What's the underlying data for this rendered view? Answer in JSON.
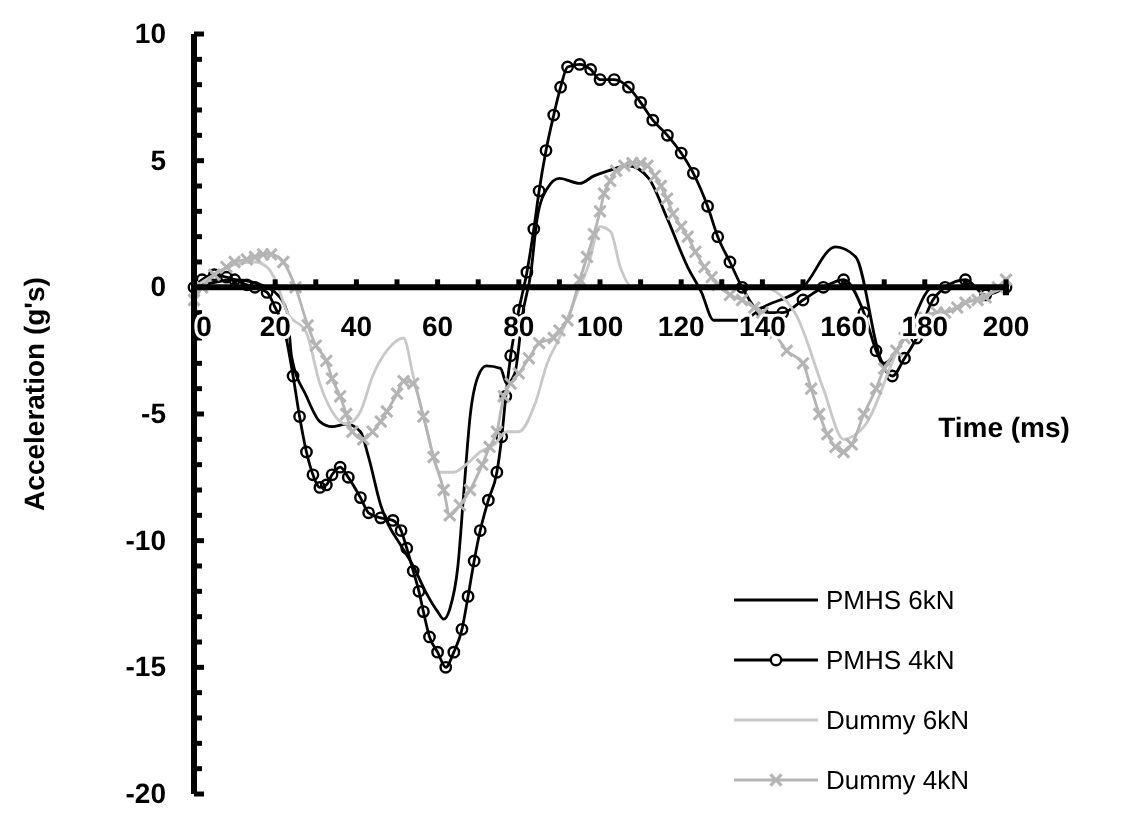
{
  "chart_data": {
    "type": "line",
    "xlabel": "Time (ms)",
    "ylabel": "Acceleration (g's)",
    "xlim": [
      0,
      200
    ],
    "ylim": [
      -20,
      10
    ],
    "xticks": [
      0,
      {
        "value": 10,
        "label": null
      },
      20,
      {
        "value": 30,
        "label": null
      },
      40,
      {
        "value": 50,
        "label": null
      },
      60,
      {
        "value": 70,
        "label": null
      },
      80,
      {
        "value": 90,
        "label": null
      },
      100,
      {
        "value": 110,
        "label": null
      },
      120,
      {
        "value": 130,
        "label": null
      },
      140,
      {
        "value": 150,
        "label": null
      },
      160,
      {
        "value": 170,
        "label": null
      },
      180,
      {
        "value": 190,
        "label": null
      },
      200
    ],
    "yticks": [
      -20,
      {
        "value": -19,
        "label": null
      },
      {
        "value": -18,
        "label": null
      },
      {
        "value": -17,
        "label": null
      },
      {
        "value": -16,
        "label": null
      },
      -15,
      {
        "value": -14,
        "label": null
      },
      {
        "value": -13,
        "label": null
      },
      {
        "value": -12,
        "label": null
      },
      {
        "value": -11,
        "label": null
      },
      -10,
      {
        "value": -9,
        "label": null
      },
      {
        "value": -8,
        "label": null
      },
      {
        "value": -7,
        "label": null
      },
      {
        "value": -6,
        "label": null
      },
      -5,
      {
        "value": -4,
        "label": null
      },
      {
        "value": -3,
        "label": null
      },
      {
        "value": -2,
        "label": null
      },
      {
        "value": -1,
        "label": null
      },
      0,
      {
        "value": 1,
        "label": null
      },
      {
        "value": 2,
        "label": null
      },
      {
        "value": 3,
        "label": null
      },
      {
        "value": 4,
        "label": null
      },
      5,
      {
        "value": 6,
        "label": null
      },
      {
        "value": 7,
        "label": null
      },
      {
        "value": 8,
        "label": null
      },
      {
        "value": 9,
        "label": null
      },
      10
    ],
    "grid": false,
    "legend": "bottom right",
    "line_style": "solid",
    "series": [
      {
        "name": "PMHS 6kN",
        "color": "#000000",
        "marker": "none",
        "x": [
          0,
          10,
          18,
          20,
          23,
          24,
          27.7,
          31,
          34,
          37.6,
          41,
          43,
          46,
          47.4,
          51,
          54,
          57,
          60,
          61.5,
          63,
          65,
          66.5,
          68,
          70,
          72,
          75.5,
          77,
          79,
          81,
          83,
          84.5,
          87,
          90,
          95,
          98.5,
          102,
          107,
          112,
          116.6,
          121.6,
          125,
          128,
          135,
          140,
          150,
          158,
          163,
          170,
          175,
          182,
          190,
          200
        ],
        "values": [
          0,
          0.3,
          0,
          -0.2,
          -1,
          -2.7,
          -4.3,
          -5.3,
          -5.5,
          -5.4,
          -5.7,
          -6.7,
          -8.6,
          -9.2,
          -10.2,
          -11,
          -12,
          -12.8,
          -13.1,
          -12.7,
          -11,
          -8,
          -5.1,
          -3.5,
          -3.1,
          -3.2,
          -3.8,
          -3.4,
          -1,
          0.6,
          2.7,
          3.9,
          4.3,
          4.1,
          4.4,
          4.6,
          4.8,
          4.3,
          2.7,
          0.8,
          -0.2,
          -1.3,
          -1.3,
          -0.8,
          0,
          1.6,
          1.2,
          -3,
          -2,
          0,
          0,
          0
        ]
      },
      {
        "name": "PMHS 4kN",
        "color": "#000000",
        "marker": "circle",
        "x": [
          0,
          2,
          5,
          8,
          10,
          13,
          15,
          18,
          20,
          22,
          24.4,
          26,
          27.7,
          29.3,
          31,
          32.6,
          34,
          36,
          38,
          41,
          43,
          46,
          49,
          51,
          52.4,
          54,
          55.4,
          56.5,
          58,
          60,
          62,
          64,
          66,
          67.5,
          69,
          70.5,
          72.5,
          74.6,
          75.8,
          76.8,
          78,
          80,
          82,
          83.7,
          85,
          86.7,
          88.6,
          90.3,
          92,
          95,
          97.7,
          100,
          103.5,
          107,
          110,
          113,
          116.6,
          120,
          123,
          126.5,
          129,
          132,
          135,
          140,
          145,
          150,
          155,
          160,
          165,
          168,
          172,
          175,
          178,
          182,
          185,
          190,
          195,
          200
        ],
        "values": [
          0,
          0.3,
          0.5,
          0.4,
          0.3,
          0.1,
          0,
          -0.2,
          -0.8,
          -1.5,
          -3.5,
          -5.1,
          -6.5,
          -7.4,
          -7.9,
          -7.8,
          -7.4,
          -7.1,
          -7.5,
          -8.3,
          -8.9,
          -9.1,
          -9.2,
          -9.6,
          -10.3,
          -11.2,
          -12,
          -12.8,
          -13.8,
          -14.4,
          -15,
          -14.4,
          -13.5,
          -12.2,
          -10.8,
          -9.6,
          -8.4,
          -7.3,
          -5.9,
          -4.3,
          -2.7,
          -0.9,
          0.6,
          2.3,
          3.8,
          5.4,
          6.8,
          7.9,
          8.7,
          8.8,
          8.6,
          8.2,
          8.2,
          7.9,
          7.3,
          6.6,
          6,
          5.3,
          4.5,
          3.2,
          2,
          1,
          0,
          -1,
          -1,
          -0.5,
          0,
          0.3,
          -1,
          -2.5,
          -3.5,
          -2.8,
          -2,
          -0.5,
          0,
          0.3,
          -0.3,
          0
        ]
      },
      {
        "name": "Dummy 6kN",
        "color": "#c8c8c8",
        "marker": "none",
        "x": [
          0,
          5,
          10,
          15,
          18,
          20,
          23,
          27.7,
          31,
          34,
          37.6,
          41,
          44,
          48,
          51.6,
          54,
          57,
          60.6,
          64,
          67,
          70.5,
          74,
          77,
          80,
          84,
          87,
          90,
          95,
          97,
          100,
          102.6,
          105,
          108,
          120,
          140,
          148,
          155,
          160,
          165,
          175,
          185,
          200
        ],
        "values": [
          0,
          0.5,
          0.9,
          1,
          0.8,
          0.3,
          -1,
          -1.8,
          -3.8,
          -4.9,
          -5.4,
          -4.9,
          -3.5,
          -2.4,
          -2,
          -3.5,
          -5.4,
          -7.3,
          -7.3,
          -7,
          -6.5,
          -6.2,
          -5.7,
          -5.7,
          -4.6,
          -3,
          -2,
          0,
          0.8,
          2.4,
          2.2,
          0.8,
          0,
          0,
          0,
          -1,
          -4,
          -6,
          -5.5,
          -2,
          -1,
          0
        ]
      },
      {
        "name": "Dummy 4kN",
        "color": "#b4b4b4",
        "marker": "cross",
        "x": [
          0,
          2,
          5,
          8,
          10,
          13,
          15,
          17,
          19,
          22,
          25,
          28,
          30,
          32.6,
          34,
          36,
          37.5,
          39,
          41.7,
          44,
          46,
          47.5,
          50,
          51.6,
          54,
          56.5,
          59,
          61.5,
          63,
          65.5,
          68,
          71,
          72.8,
          74.6,
          76.3,
          78,
          80,
          82.5,
          85,
          88.6,
          90,
          92,
          95,
          96.8,
          98.5,
          100,
          101,
          102.5,
          104,
          106,
          108,
          110,
          111.7,
          113.5,
          115,
          116.5,
          118,
          120,
          121.6,
          123.5,
          125.7,
          127.5,
          129,
          132,
          135,
          138,
          140,
          143,
          146,
          150,
          152,
          154,
          156,
          158,
          160,
          162,
          165,
          168,
          170,
          173,
          175,
          178,
          180,
          183,
          185,
          188,
          190,
          193,
          195,
          198,
          200
        ],
        "values": [
          -0.5,
          0,
          0.5,
          0.8,
          1,
          1.1,
          1.2,
          1.3,
          1.3,
          1,
          0,
          -1.5,
          -2.3,
          -2.9,
          -3.6,
          -4.3,
          -5,
          -5.7,
          -6,
          -5.7,
          -5.3,
          -4.9,
          -4.2,
          -3.7,
          -3.8,
          -5.1,
          -6.7,
          -8,
          -9,
          -8.6,
          -8,
          -7,
          -6.3,
          -5.7,
          -4.3,
          -3.8,
          -3.4,
          -2.8,
          -2.2,
          -2,
          -1.7,
          -1.3,
          0.3,
          1.2,
          2.1,
          3,
          3.7,
          4.2,
          4.6,
          4.8,
          4.9,
          4.9,
          4.8,
          4.4,
          4,
          3.5,
          2.9,
          2.4,
          2,
          1.4,
          0.8,
          0.4,
          0.1,
          -0.3,
          -0.5,
          -0.8,
          -1,
          -1.8,
          -2.5,
          -3,
          -4,
          -5,
          -5.8,
          -6.3,
          -6.5,
          -6.2,
          -5,
          -4,
          -3.2,
          -2.5,
          -2,
          -1.5,
          -1.2,
          -1,
          -1,
          -0.8,
          -0.6,
          -0.5,
          -0.4,
          0,
          0.3
        ]
      }
    ]
  }
}
